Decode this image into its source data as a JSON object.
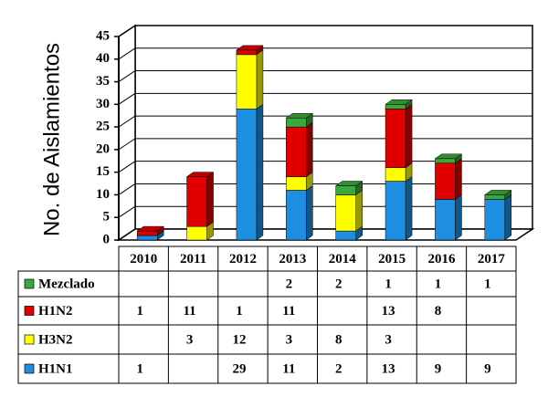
{
  "chart_data": {
    "type": "bar3d_stacked",
    "y_label": "No. de Aislamientos",
    "categories": [
      "2010",
      "2011",
      "2012",
      "2013",
      "2014",
      "2015",
      "2016",
      "2017"
    ],
    "series": [
      {
        "name": "Mezclado",
        "color": "#3aa83a",
        "values": [
          null,
          null,
          null,
          2,
          2,
          1,
          1,
          1
        ]
      },
      {
        "name": "H1N2",
        "color": "#e00000",
        "values": [
          1,
          11,
          1,
          11,
          null,
          13,
          8,
          null
        ]
      },
      {
        "name": "H3N2",
        "color": "#ffff00",
        "values": [
          null,
          3,
          12,
          3,
          8,
          3,
          null,
          null
        ]
      },
      {
        "name": "H1N1",
        "color": "#1e8fe0",
        "values": [
          1,
          null,
          29,
          11,
          2,
          13,
          9,
          9
        ]
      }
    ],
    "ylim": [
      0,
      45
    ],
    "yticks": [
      0,
      5,
      10,
      15,
      20,
      25,
      30,
      35,
      40,
      45
    ]
  }
}
